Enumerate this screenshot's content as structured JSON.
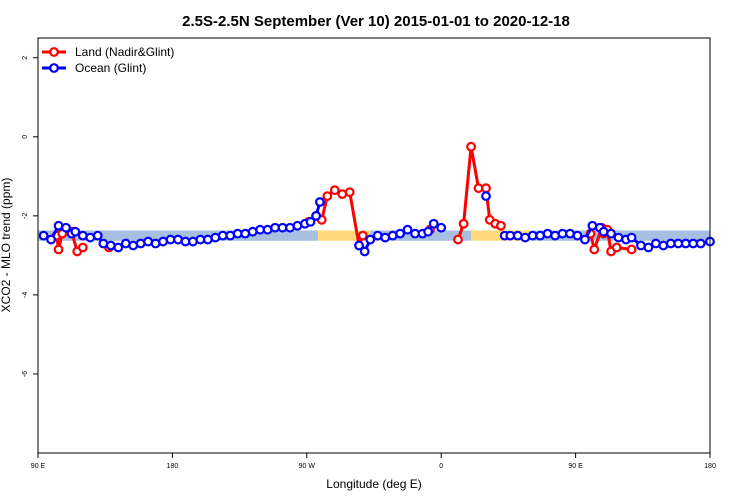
{
  "chart_data": {
    "type": "line",
    "title": "2.5S-2.5N September (Ver 10)   2015-01-01 to 2020-12-18",
    "xlabel": "Longitude (deg E)",
    "ylabel": "XCO2 - MLO trend (ppm)",
    "xlim": [
      90,
      450
    ],
    "ylim": [
      -8,
      2.5
    ],
    "x_ticks": [
      {
        "value": 90,
        "label": "90 E"
      },
      {
        "value": 162,
        "label": "180"
      },
      {
        "value": 234,
        "label": "90 W"
      },
      {
        "value": 306,
        "label": "0"
      },
      {
        "value": 378,
        "label": "90 E"
      },
      {
        "value": 450,
        "label": "180"
      }
    ],
    "y_ticks": [
      {
        "value": 2,
        "label": "2"
      },
      {
        "value": 0,
        "label": "0"
      },
      {
        "value": -2,
        "label": "-2"
      },
      {
        "value": -4,
        "label": "-4"
      },
      {
        "value": -6,
        "label": "-6"
      }
    ],
    "legend_position": "top-left",
    "bands": [
      {
        "x0": 90,
        "x1": 240,
        "y0": -2.63,
        "y1": -2.37,
        "color": "#a7bfe0"
      },
      {
        "x0": 240,
        "x1": 268,
        "y0": -2.63,
        "y1": -2.37,
        "color": "#ffd97a"
      },
      {
        "x0": 268,
        "x1": 322,
        "y0": -2.63,
        "y1": -2.37,
        "color": "#a7bfe0"
      },
      {
        "x0": 322,
        "x1": 355,
        "y0": -2.63,
        "y1": -2.37,
        "color": "#ffd97a"
      },
      {
        "x0": 355,
        "x1": 450,
        "y0": -2.63,
        "y1": -2.37,
        "color": "#a7bfe0"
      }
    ],
    "series": [
      {
        "name": "Land (Nadir&Glint)",
        "color": "#ff0000",
        "segments": [
          [
            [
              100,
              -2.5
            ],
            [
              101,
              -2.85
            ],
            [
              103,
              -2.45
            ],
            [
              108,
              -2.4
            ],
            [
              111,
              -2.9
            ],
            [
              114,
              -2.8
            ]
          ],
          [
            [
              128,
              -2.8
            ]
          ],
          [
            [
              235,
              -2.15
            ],
            [
              239,
              -2.0
            ],
            [
              242,
              -2.1
            ],
            [
              245,
              -1.5
            ],
            [
              249,
              -1.35
            ],
            [
              253,
              -1.45
            ],
            [
              257,
              -1.4
            ],
            [
              262,
              -2.75
            ],
            [
              264,
              -2.5
            ]
          ],
          [
            [
              300,
              -2.35
            ]
          ],
          [
            [
              315,
              -2.6
            ],
            [
              318,
              -2.2
            ],
            [
              322,
              -0.25
            ],
            [
              326,
              -1.3
            ],
            [
              330,
              -1.3
            ],
            [
              332,
              -2.1
            ],
            [
              335,
              -2.2
            ],
            [
              338,
              -2.25
            ]
          ],
          [
            [
              386,
              -2.45
            ],
            [
              388,
              -2.85
            ],
            [
              392,
              -2.3
            ],
            [
              393,
              -2.45
            ],
            [
              395,
              -2.35
            ],
            [
              397,
              -2.9
            ],
            [
              400,
              -2.8
            ],
            [
              408,
              -2.85
            ]
          ]
        ]
      },
      {
        "name": "Ocean (Glint)",
        "color": "#0000ff",
        "segments": [
          [
            [
              93,
              -2.5
            ],
            [
              97,
              -2.6
            ],
            [
              101,
              -2.25
            ],
            [
              105,
              -2.3
            ],
            [
              108,
              -2.45
            ],
            [
              110,
              -2.4
            ],
            [
              114,
              -2.5
            ],
            [
              118,
              -2.55
            ],
            [
              122,
              -2.5
            ],
            [
              125,
              -2.7
            ],
            [
              129,
              -2.75
            ],
            [
              133,
              -2.8
            ],
            [
              137,
              -2.7
            ],
            [
              141,
              -2.75
            ],
            [
              145,
              -2.7
            ],
            [
              149,
              -2.65
            ],
            [
              153,
              -2.7
            ],
            [
              157,
              -2.65
            ],
            [
              161,
              -2.6
            ],
            [
              165,
              -2.6
            ],
            [
              169,
              -2.65
            ],
            [
              173,
              -2.65
            ],
            [
              177,
              -2.6
            ],
            [
              181,
              -2.6
            ],
            [
              185,
              -2.55
            ],
            [
              189,
              -2.5
            ],
            [
              193,
              -2.5
            ],
            [
              197,
              -2.45
            ],
            [
              201,
              -2.45
            ],
            [
              205,
              -2.4
            ],
            [
              209,
              -2.35
            ],
            [
              213,
              -2.35
            ],
            [
              217,
              -2.3
            ],
            [
              221,
              -2.3
            ],
            [
              225,
              -2.3
            ],
            [
              229,
              -2.25
            ],
            [
              233,
              -2.2
            ],
            [
              236,
              -2.15
            ],
            [
              239,
              -2.0
            ],
            [
              241,
              -1.65
            ]
          ],
          [
            [
              262,
              -2.75
            ],
            [
              265,
              -2.9
            ],
            [
              268,
              -2.6
            ],
            [
              272,
              -2.5
            ],
            [
              276,
              -2.55
            ],
            [
              280,
              -2.5
            ],
            [
              284,
              -2.45
            ],
            [
              288,
              -2.35
            ],
            [
              292,
              -2.45
            ],
            [
              296,
              -2.45
            ],
            [
              299,
              -2.4
            ],
            [
              302,
              -2.2
            ],
            [
              306,
              -2.3
            ]
          ],
          [
            [
              330,
              -1.5
            ]
          ],
          [
            [
              340,
              -2.5
            ],
            [
              343,
              -2.5
            ],
            [
              347,
              -2.5
            ],
            [
              351,
              -2.55
            ],
            [
              355,
              -2.5
            ],
            [
              359,
              -2.5
            ],
            [
              363,
              -2.45
            ],
            [
              367,
              -2.5
            ],
            [
              371,
              -2.45
            ],
            [
              375,
              -2.45
            ],
            [
              379,
              -2.5
            ],
            [
              383,
              -2.6
            ],
            [
              387,
              -2.25
            ],
            [
              391,
              -2.3
            ],
            [
              393,
              -2.4
            ],
            [
              397,
              -2.45
            ],
            [
              401,
              -2.55
            ],
            [
              405,
              -2.6
            ],
            [
              408,
              -2.55
            ],
            [
              413,
              -2.75
            ],
            [
              417,
              -2.8
            ],
            [
              421,
              -2.7
            ],
            [
              425,
              -2.75
            ],
            [
              429,
              -2.7
            ],
            [
              433,
              -2.7
            ],
            [
              437,
              -2.7
            ],
            [
              441,
              -2.7
            ],
            [
              445,
              -2.7
            ],
            [
              450,
              -2.65
            ]
          ]
        ]
      }
    ]
  }
}
